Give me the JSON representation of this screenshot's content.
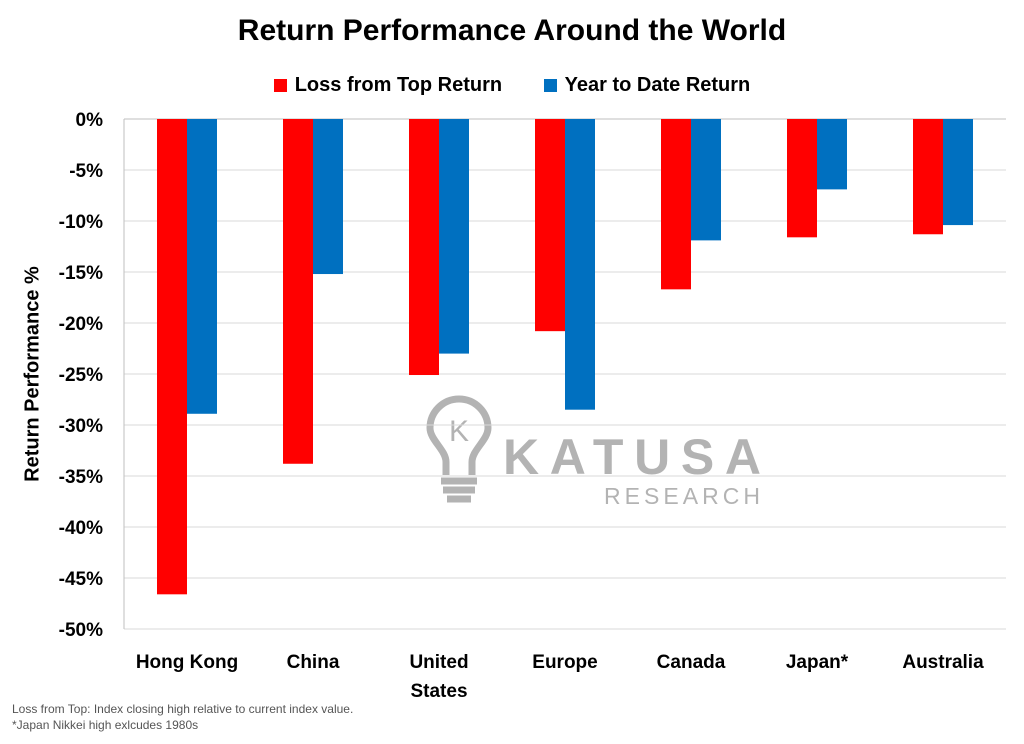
{
  "chart_data": {
    "type": "bar",
    "title": "Return Performance Around the World",
    "xlabel": "",
    "ylabel": "Return Performance %",
    "ylim": [
      -50,
      0
    ],
    "ytick_step": 5,
    "y_ticks": [
      "0%",
      "-5%",
      "-10%",
      "-15%",
      "-20%",
      "-25%",
      "-30%",
      "-35%",
      "-40%",
      "-45%",
      "-50%"
    ],
    "grid": true,
    "legend_position": "top-center",
    "categories": [
      "Hong Kong",
      "China",
      "United States",
      "Europe",
      "Canada",
      "Japan*",
      "Australia"
    ],
    "category_lines": [
      [
        "Hong Kong"
      ],
      [
        "China"
      ],
      [
        "United",
        "States"
      ],
      [
        "Europe"
      ],
      [
        "Canada"
      ],
      [
        "Japan*"
      ],
      [
        "Australia"
      ]
    ],
    "series": [
      {
        "name": "Loss from Top Return",
        "color": "#ff0000",
        "values": [
          -46.6,
          -33.8,
          -25.1,
          -20.8,
          -16.7,
          -11.6,
          -11.3
        ]
      },
      {
        "name": "Year to Date Return",
        "color": "#0070c0",
        "values": [
          -28.9,
          -15.2,
          -23.0,
          -28.5,
          -11.9,
          -6.9,
          -10.4
        ]
      }
    ]
  },
  "watermark": {
    "brand": "KATUSA",
    "sub": "RESEARCH",
    "logo_letter": "K"
  },
  "footnotes": [
    "Loss from Top: Index closing high relative to current index value.",
    "*Japan Nikkei high exlcudes 1980s"
  ],
  "colors": {
    "gridline": "#d9d9d9",
    "axis": "#bfbfbf"
  }
}
